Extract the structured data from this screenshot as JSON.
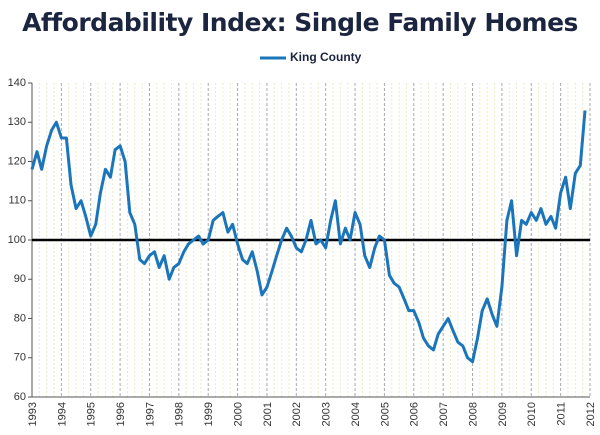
{
  "chart_data": {
    "type": "line",
    "title": "Affordability Index: Single Family Homes",
    "x": [
      1993,
      1993.17,
      1993.33,
      1993.5,
      1993.67,
      1993.83,
      1994,
      1994.17,
      1994.33,
      1994.5,
      1994.67,
      1994.83,
      1995,
      1995.17,
      1995.33,
      1995.5,
      1995.67,
      1995.83,
      1996,
      1996.17,
      1996.33,
      1996.5,
      1996.67,
      1996.83,
      1997,
      1997.17,
      1997.33,
      1997.5,
      1997.67,
      1997.83,
      1998,
      1998.17,
      1998.33,
      1998.5,
      1998.67,
      1998.83,
      1999,
      1999.17,
      1999.33,
      1999.5,
      1999.67,
      1999.83,
      2000,
      2000.17,
      2000.33,
      2000.5,
      2000.67,
      2000.83,
      2001,
      2001.17,
      2001.33,
      2001.5,
      2001.67,
      2001.83,
      2002,
      2002.17,
      2002.33,
      2002.5,
      2002.67,
      2002.83,
      2003,
      2003.17,
      2003.33,
      2003.5,
      2003.67,
      2003.83,
      2004,
      2004.17,
      2004.33,
      2004.5,
      2004.67,
      2004.83,
      2005,
      2005.17,
      2005.33,
      2005.5,
      2005.67,
      2005.83,
      2006,
      2006.17,
      2006.33,
      2006.5,
      2006.67,
      2006.83,
      2007,
      2007.17,
      2007.33,
      2007.5,
      2007.67,
      2007.83,
      2008,
      2008.17,
      2008.33,
      2008.5,
      2008.67,
      2008.83,
      2009,
      2009.17,
      2009.33,
      2009.5,
      2009.67,
      2009.83,
      2010,
      2010.17,
      2010.33,
      2010.5,
      2010.67,
      2010.83,
      2011,
      2011.17,
      2011.33,
      2011.5,
      2011.67,
      2011.83
    ],
    "series": [
      {
        "name": "King County",
        "color": "#1b75bb",
        "values": [
          118,
          122.5,
          118,
          124,
          128,
          130,
          126,
          126,
          114,
          108,
          110,
          106,
          101,
          104,
          112,
          118,
          116,
          123,
          124,
          120,
          107,
          104,
          95,
          94,
          96,
          97,
          93,
          96,
          90,
          93,
          94,
          97,
          99,
          100,
          101,
          99,
          100,
          105,
          106,
          107,
          102,
          104,
          99,
          95,
          94,
          97,
          92,
          86,
          88,
          92,
          96,
          100,
          103,
          101,
          98,
          97,
          100,
          105,
          99,
          100,
          98,
          105,
          110,
          99,
          103,
          100,
          107,
          104,
          96,
          93,
          98,
          101,
          100,
          91,
          89,
          88,
          85,
          82,
          82,
          79,
          75,
          73,
          72,
          76,
          78,
          80,
          77,
          74,
          73,
          70,
          69,
          75,
          82,
          85,
          81,
          78,
          88,
          105,
          110,
          96,
          105,
          104,
          107,
          105,
          108,
          104,
          106,
          103,
          112,
          116,
          108,
          117,
          119,
          133
        ]
      }
    ],
    "reference_line": 100,
    "xlim": [
      1993,
      2012
    ],
    "xticks": [
      1993,
      1994,
      1995,
      1996,
      1997,
      1998,
      1999,
      2000,
      2001,
      2002,
      2003,
      2004,
      2005,
      2006,
      2007,
      2008,
      2009,
      2010,
      2011,
      2012
    ],
    "ylim": [
      60,
      140
    ],
    "yticks": [
      60,
      70,
      80,
      90,
      100,
      110,
      120,
      130,
      140
    ]
  }
}
